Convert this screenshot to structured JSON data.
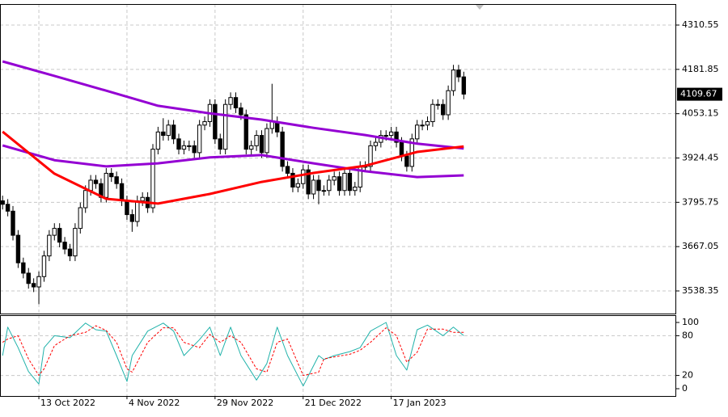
{
  "chart_data": [
    {
      "type": "candlestick",
      "xlim": [
        -0.5,
        130
      ],
      "ylim": [
        3472.6,
        4371.6
      ],
      "yticks": [
        4310.55,
        4181.85,
        4053.15,
        3924.45,
        3795.75,
        3667.05,
        3538.35
      ],
      "grid": true,
      "date_labels": [
        {
          "value": 7,
          "label": "13 Oct 2022"
        },
        {
          "value": 24,
          "label": "4 Nov 2022"
        },
        {
          "value": 41,
          "label": "29 Nov 2022"
        },
        {
          "value": 58,
          "label": "21 Dec 2022"
        },
        {
          "value": 75,
          "label": "17 Jan 2023"
        }
      ],
      "last_price": 4109.67,
      "open": [
        3800,
        3790,
        3770,
        3700,
        3620,
        3590,
        3560,
        3550,
        3580,
        3640,
        3700,
        3720,
        3680,
        3660,
        3640,
        3720,
        3780,
        3830,
        3860,
        3850,
        3810,
        3880,
        3870,
        3850,
        3800,
        3760,
        3740,
        3800,
        3810,
        3780,
        3950,
        4000,
        3990,
        4020,
        3980,
        3950,
        3960,
        3960,
        3940,
        4020,
        4030,
        4080,
        3980,
        3950,
        4080,
        4100,
        4070,
        4050,
        3950,
        3960,
        3990,
        3940,
        4010,
        4030,
        4000,
        3900,
        3880,
        3840,
        3850,
        3890,
        3820,
        3860,
        3830,
        3830,
        3860,
        3870,
        3830,
        3880,
        3830,
        3840,
        3900,
        3900,
        3960,
        3970,
        3990,
        3990,
        4000,
        3970,
        3930,
        3900,
        3980,
        4020,
        4020,
        4030,
        4080,
        4080,
        4050,
        4120,
        4180,
        4160
      ],
      "high": [
        3815,
        3805,
        3785,
        3715,
        3635,
        3605,
        3575,
        3595,
        3655,
        3715,
        3735,
        3735,
        3695,
        3675,
        3735,
        3795,
        3845,
        3875,
        3875,
        3865,
        3895,
        3895,
        3885,
        3865,
        3815,
        3775,
        3815,
        3825,
        3825,
        3965,
        4015,
        4040,
        4035,
        4035,
        3995,
        3975,
        3975,
        3975,
        4035,
        4045,
        4095,
        4095,
        3995,
        4095,
        4115,
        4115,
        4085,
        4065,
        3975,
        4005,
        4005,
        4025,
        4140,
        4045,
        4015,
        3915,
        3895,
        3865,
        3905,
        3905,
        3875,
        3875,
        3845,
        3875,
        3885,
        3885,
        3895,
        3895,
        3855,
        3915,
        3915,
        3975,
        3985,
        4005,
        4005,
        4015,
        4015,
        3985,
        3945,
        3995,
        4035,
        4035,
        4045,
        4095,
        4095,
        4095,
        4135,
        4195,
        4195,
        4175
      ],
      "low": [
        3775,
        3755,
        3685,
        3605,
        3575,
        3545,
        3535,
        3500,
        3565,
        3625,
        3685,
        3665,
        3645,
        3625,
        3625,
        3705,
        3765,
        3815,
        3835,
        3795,
        3795,
        3855,
        3835,
        3785,
        3745,
        3710,
        3725,
        3785,
        3765,
        3765,
        3935,
        3975,
        3975,
        3965,
        3935,
        3935,
        3945,
        3925,
        3925,
        4005,
        4015,
        3965,
        3935,
        3935,
        4065,
        4055,
        4035,
        3935,
        3935,
        3945,
        3925,
        3925,
        3995,
        3985,
        3885,
        3865,
        3825,
        3825,
        3835,
        3805,
        3805,
        3790,
        3815,
        3815,
        3845,
        3815,
        3815,
        3815,
        3815,
        3825,
        3885,
        3885,
        3945,
        3955,
        3975,
        3975,
        3955,
        3915,
        3885,
        3885,
        3965,
        4005,
        4005,
        4015,
        4065,
        4035,
        4035,
        4105,
        4145,
        4095
      ],
      "close": [
        3790,
        3770,
        3700,
        3620,
        3590,
        3560,
        3550,
        3580,
        3640,
        3700,
        3720,
        3680,
        3660,
        3640,
        3720,
        3780,
        3830,
        3860,
        3850,
        3810,
        3880,
        3870,
        3850,
        3800,
        3760,
        3740,
        3800,
        3810,
        3780,
        3950,
        4000,
        3990,
        4020,
        3980,
        3950,
        3960,
        3960,
        3940,
        4020,
        4030,
        4080,
        3980,
        3950,
        4080,
        4100,
        4070,
        4050,
        3950,
        3960,
        3990,
        3940,
        4010,
        4030,
        4000,
        3900,
        3880,
        3840,
        3850,
        3890,
        3820,
        3860,
        3830,
        3830,
        3860,
        3870,
        3830,
        3880,
        3830,
        3840,
        3900,
        3900,
        3960,
        3970,
        3990,
        3990,
        4000,
        3970,
        3930,
        3900,
        3980,
        4020,
        4020,
        4030,
        4080,
        4080,
        4050,
        4120,
        4180,
        4160,
        4110
      ],
      "series": [
        {
          "color": "#9400d3",
          "x": [
            0,
            10,
            20,
            30,
            40,
            50,
            60,
            70,
            80,
            89
          ],
          "values": [
            4205,
            4163,
            4120,
            4076,
            4054,
            4036,
            4012,
            3991,
            3966,
            3952
          ]
        },
        {
          "color": "#9400d3",
          "x": [
            0,
            10,
            20,
            30,
            40,
            50,
            60,
            70,
            80,
            89
          ],
          "values": [
            3961,
            3918,
            3900,
            3909,
            3926,
            3933,
            3909,
            3886,
            3869,
            3874
          ]
        },
        {
          "color": "#ff0000",
          "x": [
            0,
            10,
            20,
            30,
            40,
            50,
            60,
            70,
            80,
            89
          ],
          "values": [
            4001,
            3879,
            3806,
            3792,
            3820,
            3855,
            3881,
            3902,
            3942,
            3958
          ]
        }
      ]
    },
    {
      "type": "line",
      "xlim": [
        -0.5,
        130
      ],
      "ylim": [
        -11,
        111
      ],
      "yticks": [
        100,
        80,
        20,
        0
      ],
      "series": [
        {
          "color": "#20b2aa",
          "style": "solid",
          "x": [
            0,
            1,
            3,
            5,
            7,
            8,
            10,
            13,
            16,
            18,
            20,
            22,
            24,
            25,
            28,
            31,
            33,
            35,
            38,
            40,
            42,
            44,
            46,
            49,
            51,
            53,
            55,
            58,
            61,
            62,
            64,
            67,
            69,
            71,
            74,
            76,
            78,
            80,
            82,
            85,
            87,
            89
          ],
          "values": [
            50,
            93,
            62,
            26,
            7,
            62,
            80,
            77,
            99,
            89,
            87,
            50,
            11,
            50,
            87,
            99,
            87,
            50,
            74,
            93,
            50,
            93,
            50,
            13,
            38,
            93,
            50,
            4,
            50,
            44,
            50,
            56,
            62,
            87,
            100,
            50,
            28,
            89,
            96,
            80,
            93,
            80
          ]
        },
        {
          "color": "#ff0000",
          "style": "dotted",
          "x": [
            0,
            1,
            3,
            5,
            7,
            8,
            10,
            13,
            16,
            18,
            20,
            22,
            24,
            25,
            28,
            31,
            33,
            35,
            38,
            40,
            42,
            44,
            46,
            49,
            51,
            53,
            55,
            58,
            61,
            62,
            64,
            67,
            69,
            71,
            74,
            76,
            78,
            80,
            82,
            85,
            87,
            89
          ],
          "values": [
            70,
            75,
            80,
            45,
            20,
            30,
            65,
            80,
            85,
            95,
            88,
            70,
            30,
            25,
            70,
            92,
            92,
            70,
            62,
            82,
            70,
            80,
            70,
            30,
            25,
            70,
            75,
            20,
            25,
            45,
            48,
            52,
            58,
            70,
            92,
            80,
            40,
            55,
            90,
            90,
            85,
            85
          ]
        }
      ]
    }
  ]
}
